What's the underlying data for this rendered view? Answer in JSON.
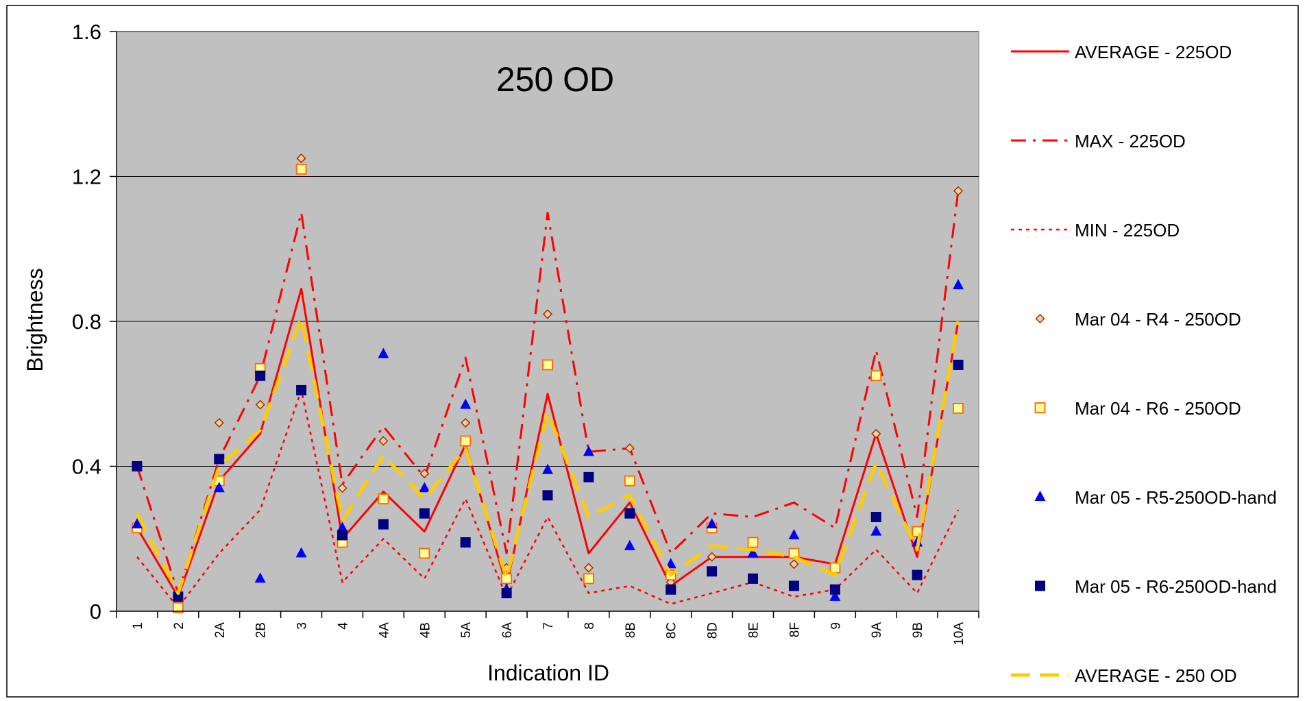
{
  "chart_data": {
    "type": "line",
    "title": "250 OD",
    "xlabel": "Indication ID",
    "ylabel": "Brightness",
    "ylim": [
      0,
      1.6
    ],
    "yticks": [
      "0",
      "0.4",
      "0.8",
      "1.2",
      "1.6"
    ],
    "grid": "horizontal",
    "plot_background": "#C0C0C0",
    "legend_position": "right",
    "categories": [
      "1",
      "2",
      "2A",
      "2B",
      "3",
      "4",
      "4A",
      "4B",
      "5A",
      "6A",
      "7",
      "8",
      "8B",
      "8C",
      "8D",
      "8E",
      "8F",
      "9",
      "9A",
      "9B",
      "10A"
    ],
    "series": [
      {
        "name": "AVERAGE - 225OD",
        "style": "solid-line",
        "color": "#FF0000",
        "values": [
          0.23,
          0.04,
          0.36,
          0.49,
          0.89,
          0.2,
          0.33,
          0.22,
          0.46,
          0.07,
          0.6,
          0.16,
          0.3,
          0.07,
          0.15,
          0.15,
          0.15,
          0.13,
          0.49,
          0.15,
          0.8
        ]
      },
      {
        "name": "MAX - 225OD",
        "style": "dash-dot-line",
        "color": "#FF0000",
        "values": [
          0.4,
          0.05,
          0.42,
          0.65,
          1.1,
          0.35,
          0.51,
          0.37,
          0.7,
          0.16,
          1.1,
          0.44,
          0.45,
          0.16,
          0.27,
          0.26,
          0.3,
          0.23,
          0.72,
          0.26,
          1.16
        ]
      },
      {
        "name": "MIN - 225OD",
        "style": "dotted-line",
        "color": "#FF0000",
        "values": [
          0.15,
          0.01,
          0.16,
          0.28,
          0.61,
          0.08,
          0.2,
          0.09,
          0.31,
          0.04,
          0.26,
          0.05,
          0.07,
          0.02,
          0.05,
          0.08,
          0.04,
          0.06,
          0.17,
          0.05,
          0.28
        ]
      },
      {
        "name": "Mar 04 - R4 - 250OD",
        "style": "diamond-marker",
        "color": "#FFCC99",
        "stroke": "#993300",
        "values": [
          0.23,
          0.04,
          0.52,
          0.57,
          1.25,
          0.34,
          0.47,
          0.38,
          0.52,
          0.12,
          0.82,
          0.12,
          0.45,
          0.08,
          0.15,
          0.19,
          0.13,
          0.12,
          0.49,
          0.22,
          1.16
        ]
      },
      {
        "name": "Mar 04 - R6 - 250OD",
        "style": "square-marker",
        "color": "#FFFF99",
        "stroke": "#FF6600",
        "values": [
          0.23,
          0.01,
          0.36,
          0.67,
          1.22,
          0.19,
          0.31,
          0.16,
          0.47,
          0.09,
          0.68,
          0.09,
          0.36,
          0.1,
          0.23,
          0.19,
          0.16,
          0.12,
          0.65,
          0.22,
          0.56
        ]
      },
      {
        "name": "Mar 05 - R5-250OD-hand",
        "style": "triangle-marker",
        "color": "#0000FF",
        "values": [
          0.24,
          0.04,
          0.34,
          0.09,
          0.16,
          0.23,
          0.71,
          0.34,
          0.57,
          0.06,
          0.39,
          0.44,
          0.18,
          0.13,
          0.24,
          0.16,
          0.21,
          0.04,
          0.22,
          0.19,
          0.9
        ]
      },
      {
        "name": "Mar 05 - R6-250OD-hand",
        "style": "filled-square-marker",
        "color": "#000080",
        "values": [
          0.4,
          0.04,
          0.42,
          0.65,
          0.61,
          0.21,
          0.24,
          0.27,
          0.19,
          0.05,
          0.32,
          0.37,
          0.27,
          0.06,
          0.11,
          0.09,
          0.07,
          0.06,
          0.26,
          0.1,
          0.68
        ]
      },
      {
        "name": "AVERAGE - 250 OD",
        "style": "long-dash-line",
        "color": "#FFCC00",
        "values": [
          0.27,
          0.05,
          0.4,
          0.5,
          0.81,
          0.25,
          0.43,
          0.31,
          0.45,
          0.09,
          0.55,
          0.26,
          0.32,
          0.1,
          0.18,
          0.17,
          0.15,
          0.1,
          0.41,
          0.17,
          0.8
        ]
      }
    ]
  }
}
